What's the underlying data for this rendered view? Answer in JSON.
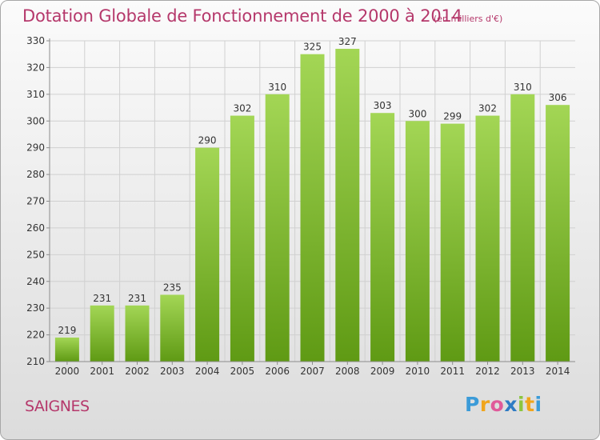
{
  "title": "Dotation Globale de Fonctionnement de 2000 à 2014",
  "unit": "(en milliers d'€)",
  "commune": "SAIGNES",
  "logo": {
    "text": "Proxiti",
    "letters": [
      "P",
      "r",
      "o",
      "x",
      "i",
      "t",
      "i"
    ],
    "colors": [
      "#3b9bd8",
      "#f0a51c",
      "#e05a9a",
      "#2e7bc4",
      "#8cc63f",
      "#f0a51c",
      "#3b9bd8"
    ]
  },
  "colors": {
    "title": "#b5386b",
    "bar_light": "#a3d655",
    "bar_dark": "#5f9a14",
    "grid": "#d0d0d0",
    "axis": "#8c8c8c",
    "text": "#333333"
  },
  "chart_data": {
    "type": "bar",
    "categories": [
      "2000",
      "2001",
      "2002",
      "2003",
      "2004",
      "2005",
      "2006",
      "2007",
      "2008",
      "2009",
      "2010",
      "2011",
      "2012",
      "2013",
      "2014"
    ],
    "values": [
      219,
      231,
      231,
      235,
      290,
      302,
      310,
      325,
      327,
      303,
      300,
      299,
      302,
      310,
      306
    ],
    "yticks": [
      210,
      220,
      230,
      240,
      250,
      260,
      270,
      280,
      290,
      300,
      310,
      320,
      330
    ],
    "ylim": [
      210,
      330
    ],
    "grid": true,
    "title": "Dotation Globale de Fonctionnement de 2000 à 2014",
    "xlabel": "",
    "ylabel": ""
  }
}
